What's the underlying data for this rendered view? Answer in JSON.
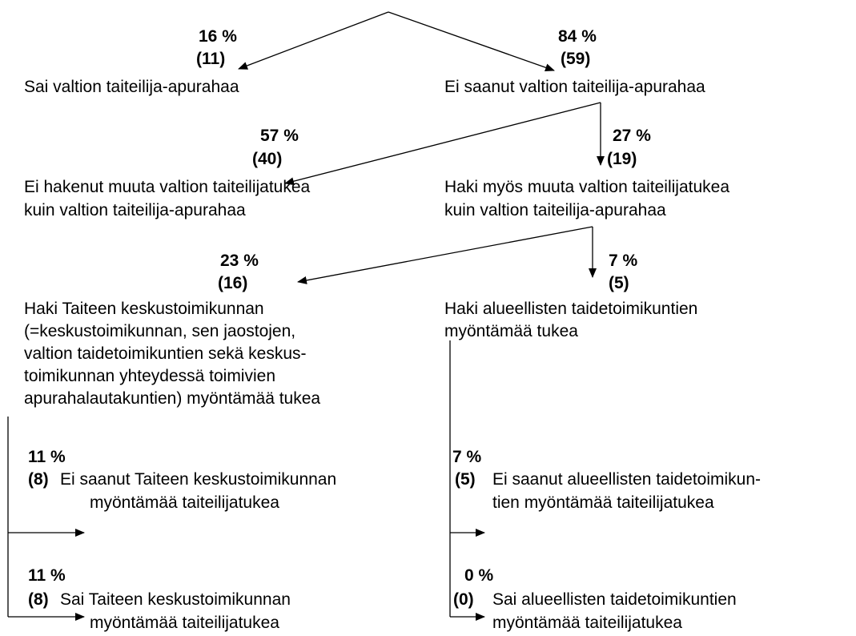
{
  "nodes": [
    {
      "percent": "16 %",
      "count": "(11)",
      "lines": [
        "Sai valtion taiteilija-apurahaa"
      ]
    },
    {
      "percent": "84 %",
      "count": "(59)",
      "lines": [
        "Ei saanut valtion taiteilija-apurahaa"
      ]
    },
    {
      "percent": "57 %",
      "count": "(40)",
      "lines": [
        "Ei hakenut muuta valtion taiteilijatukea",
        "kuin valtion taiteilija-apurahaa"
      ]
    },
    {
      "percent": "27 %",
      "count": "(19)",
      "lines": [
        "Haki myös muuta valtion taiteilijatukea",
        "kuin valtion taiteilija-apurahaa"
      ]
    },
    {
      "percent": "23 %",
      "count": "(16)",
      "lines": [
        "Haki Taiteen keskustoimikunnan",
        "(=keskustoimikunnan, sen jaostojen,",
        "valtion taidetoimikuntien sekä keskus-",
        "toimikunnan yhteydessä toimivien",
        "apurahalautakuntien) myöntämää tukea"
      ]
    },
    {
      "percent": "7 %",
      "count": "(5)",
      "lines": [
        "Haki alueellisten taidetoimikuntien",
        "myöntämää tukea"
      ]
    },
    {
      "percent": "11 %",
      "count": "(8)",
      "lines": [
        "Ei saanut Taiteen keskustoimikunnan",
        "myöntämää taiteilijatukea"
      ]
    },
    {
      "percent": "11 %",
      "count": "(8)",
      "lines": [
        "Sai Taiteen keskustoimikunnan",
        "myöntämää taiteilijatukea"
      ]
    },
    {
      "percent": "7 %",
      "count": "(5)",
      "lines": [
        "Ei saanut alueellisten taidetoimikun-",
        "tien myöntämää taiteilijatukea"
      ]
    },
    {
      "percent": "0 %",
      "count": "(0)",
      "lines": [
        "Sai alueellisten taidetoimikuntien",
        "myöntämää taiteilijatukea"
      ]
    }
  ]
}
